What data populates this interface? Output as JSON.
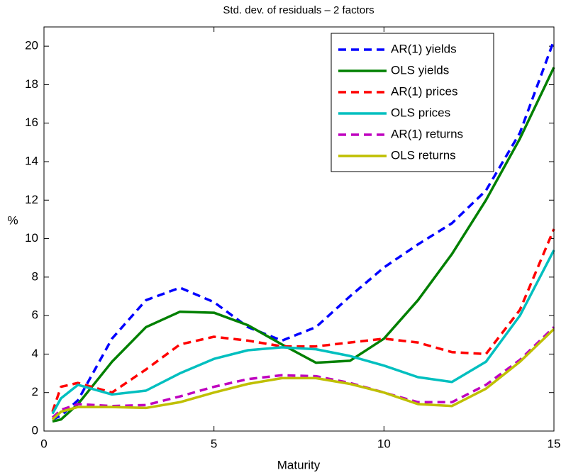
{
  "chart_data": {
    "type": "line",
    "title": "Std. dev. of residuals – 2 factors",
    "xlabel": "Maturity",
    "ylabel": "%",
    "x": [
      0.25,
      0.5,
      1,
      2,
      3,
      4,
      5,
      6,
      7,
      8,
      9,
      10,
      11,
      12,
      13,
      14,
      15
    ],
    "series": [
      {
        "name": "AR(1) yields",
        "color": "#0000ff",
        "dashed": true,
        "values": [
          0.6,
          0.8,
          1.6,
          4.8,
          6.8,
          7.45,
          6.7,
          5.4,
          4.7,
          5.4,
          7.0,
          8.5,
          9.7,
          10.8,
          12.5,
          15.5,
          20.3
        ]
      },
      {
        "name": "OLS yields",
        "color": "#008000",
        "dashed": false,
        "values": [
          0.5,
          0.6,
          1.4,
          3.6,
          5.4,
          6.2,
          6.15,
          5.5,
          4.5,
          3.55,
          3.65,
          4.8,
          6.8,
          9.2,
          12.0,
          15.2,
          18.9
        ]
      },
      {
        "name": "AR(1) prices",
        "color": "#ff0000",
        "dashed": true,
        "values": [
          1.0,
          2.3,
          2.5,
          2.0,
          3.2,
          4.5,
          4.9,
          4.7,
          4.4,
          4.4,
          4.6,
          4.8,
          4.6,
          4.1,
          4.0,
          6.3,
          10.5
        ]
      },
      {
        "name": "OLS prices",
        "color": "#00bfbf",
        "dashed": false,
        "values": [
          0.9,
          1.7,
          2.4,
          1.9,
          2.1,
          3.0,
          3.75,
          4.2,
          4.35,
          4.25,
          3.9,
          3.4,
          2.8,
          2.55,
          3.6,
          6.0,
          9.4
        ]
      },
      {
        "name": "AR(1) returns",
        "color": "#bf00bf",
        "dashed": true,
        "values": [
          0.7,
          1.1,
          1.4,
          1.3,
          1.35,
          1.8,
          2.3,
          2.7,
          2.9,
          2.85,
          2.5,
          2.0,
          1.5,
          1.5,
          2.4,
          3.7,
          5.4
        ]
      },
      {
        "name": "OLS returns",
        "color": "#bfbf00",
        "dashed": false,
        "values": [
          0.6,
          1.0,
          1.25,
          1.25,
          1.2,
          1.5,
          2.0,
          2.45,
          2.75,
          2.75,
          2.45,
          2.0,
          1.4,
          1.3,
          2.2,
          3.6,
          5.3
        ]
      }
    ],
    "xlim": [
      0,
      15
    ],
    "xticks": [
      0,
      5,
      10,
      15
    ],
    "ylim": [
      0,
      21
    ],
    "yticks": [
      0,
      2,
      4,
      6,
      8,
      10,
      12,
      14,
      16,
      18,
      20
    ],
    "grid": false,
    "legend": "northeast"
  }
}
